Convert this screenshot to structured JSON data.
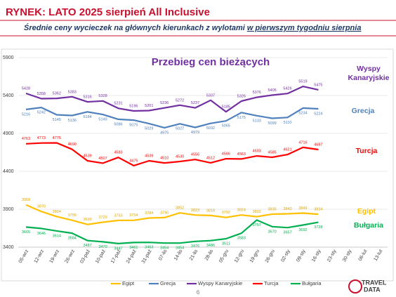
{
  "header": {
    "title": "RYNEK: LATO 2025 sierpień All Inclusive",
    "subtitle": [
      "Średnie ceny wycieczek na głównych kierunkach z wylotami",
      "w pierwszym tygodniu sierpnia"
    ]
  },
  "chart_data": {
    "type": "line",
    "title": "Przebieg cen bieżących",
    "categories": [
      "05-wrz",
      "12-wrz",
      "19-wrz",
      "26-wrz",
      "03-paź",
      "10-paź",
      "17-paź",
      "24-paź",
      "31-paź",
      "07-lis",
      "14-lis",
      "21-lis",
      "28-lis",
      "05-gru",
      "12-gru",
      "19-gru",
      "26-gru",
      "02-sty",
      "09-sty",
      "16-sty",
      "23-sty",
      "30-sty",
      "06-lut",
      "13-lut"
    ],
    "ylim": [
      3400,
      5900
    ],
    "yticks": [
      3400,
      3900,
      4400,
      4900,
      5400,
      5900
    ],
    "grid": true,
    "legend": "bottom",
    "series": [
      {
        "name": "Egipt",
        "color": "#ffc000",
        "values": [
          3958,
          3870,
          3804,
          3755,
          3699,
          3729,
          3753,
          3754,
          3784,
          3790,
          3852,
          3823,
          3818,
          3792,
          3824,
          3802,
          3835,
          3840,
          3849,
          3834,
          null,
          null,
          null,
          null
        ]
      },
      {
        "name": "Grecja",
        "color": "#4f81bd",
        "values": [
          5216,
          5242,
          5145,
          5136,
          5184,
          5149,
          5086,
          5075,
          5029,
          4975,
          5027,
          4979,
          5032,
          5065,
          5175,
          5133,
          5099,
          5110,
          5234,
          5224,
          null,
          null,
          null,
          null
        ]
      },
      {
        "name": "Wyspy Kanaryjskie",
        "color": "#7030a0",
        "values": [
          5428,
          5358,
          5362,
          5383,
          5316,
          5328,
          5231,
          5196,
          5201,
          5236,
          5272,
          5237,
          5337,
          5185,
          5326,
          5376,
          5405,
          5426,
          5519,
          5475,
          null,
          null,
          null,
          null
        ]
      },
      {
        "name": "Turcja",
        "color": "#ff0000",
        "values": [
          4763,
          4773,
          4775,
          4690,
          4539,
          4507,
          4583,
          4475,
          4539,
          4510,
          4530,
          4556,
          4512,
          4566,
          4563,
          4603,
          4585,
          4621,
          4716,
          4687,
          null,
          null,
          null,
          null
        ]
      },
      {
        "name": "Bułgaria",
        "color": "#00b050",
        "values": [
          3665,
          3646,
          3614,
          3584,
          3487,
          3470,
          3447,
          3461,
          3463,
          3454,
          3454,
          3476,
          3486,
          3511,
          3583,
          3757,
          3670,
          3657,
          3692,
          3728,
          null,
          null,
          null,
          null
        ]
      }
    ]
  },
  "footer": {
    "page": "6",
    "logo": [
      "TRAVEL",
      "DATA"
    ]
  }
}
